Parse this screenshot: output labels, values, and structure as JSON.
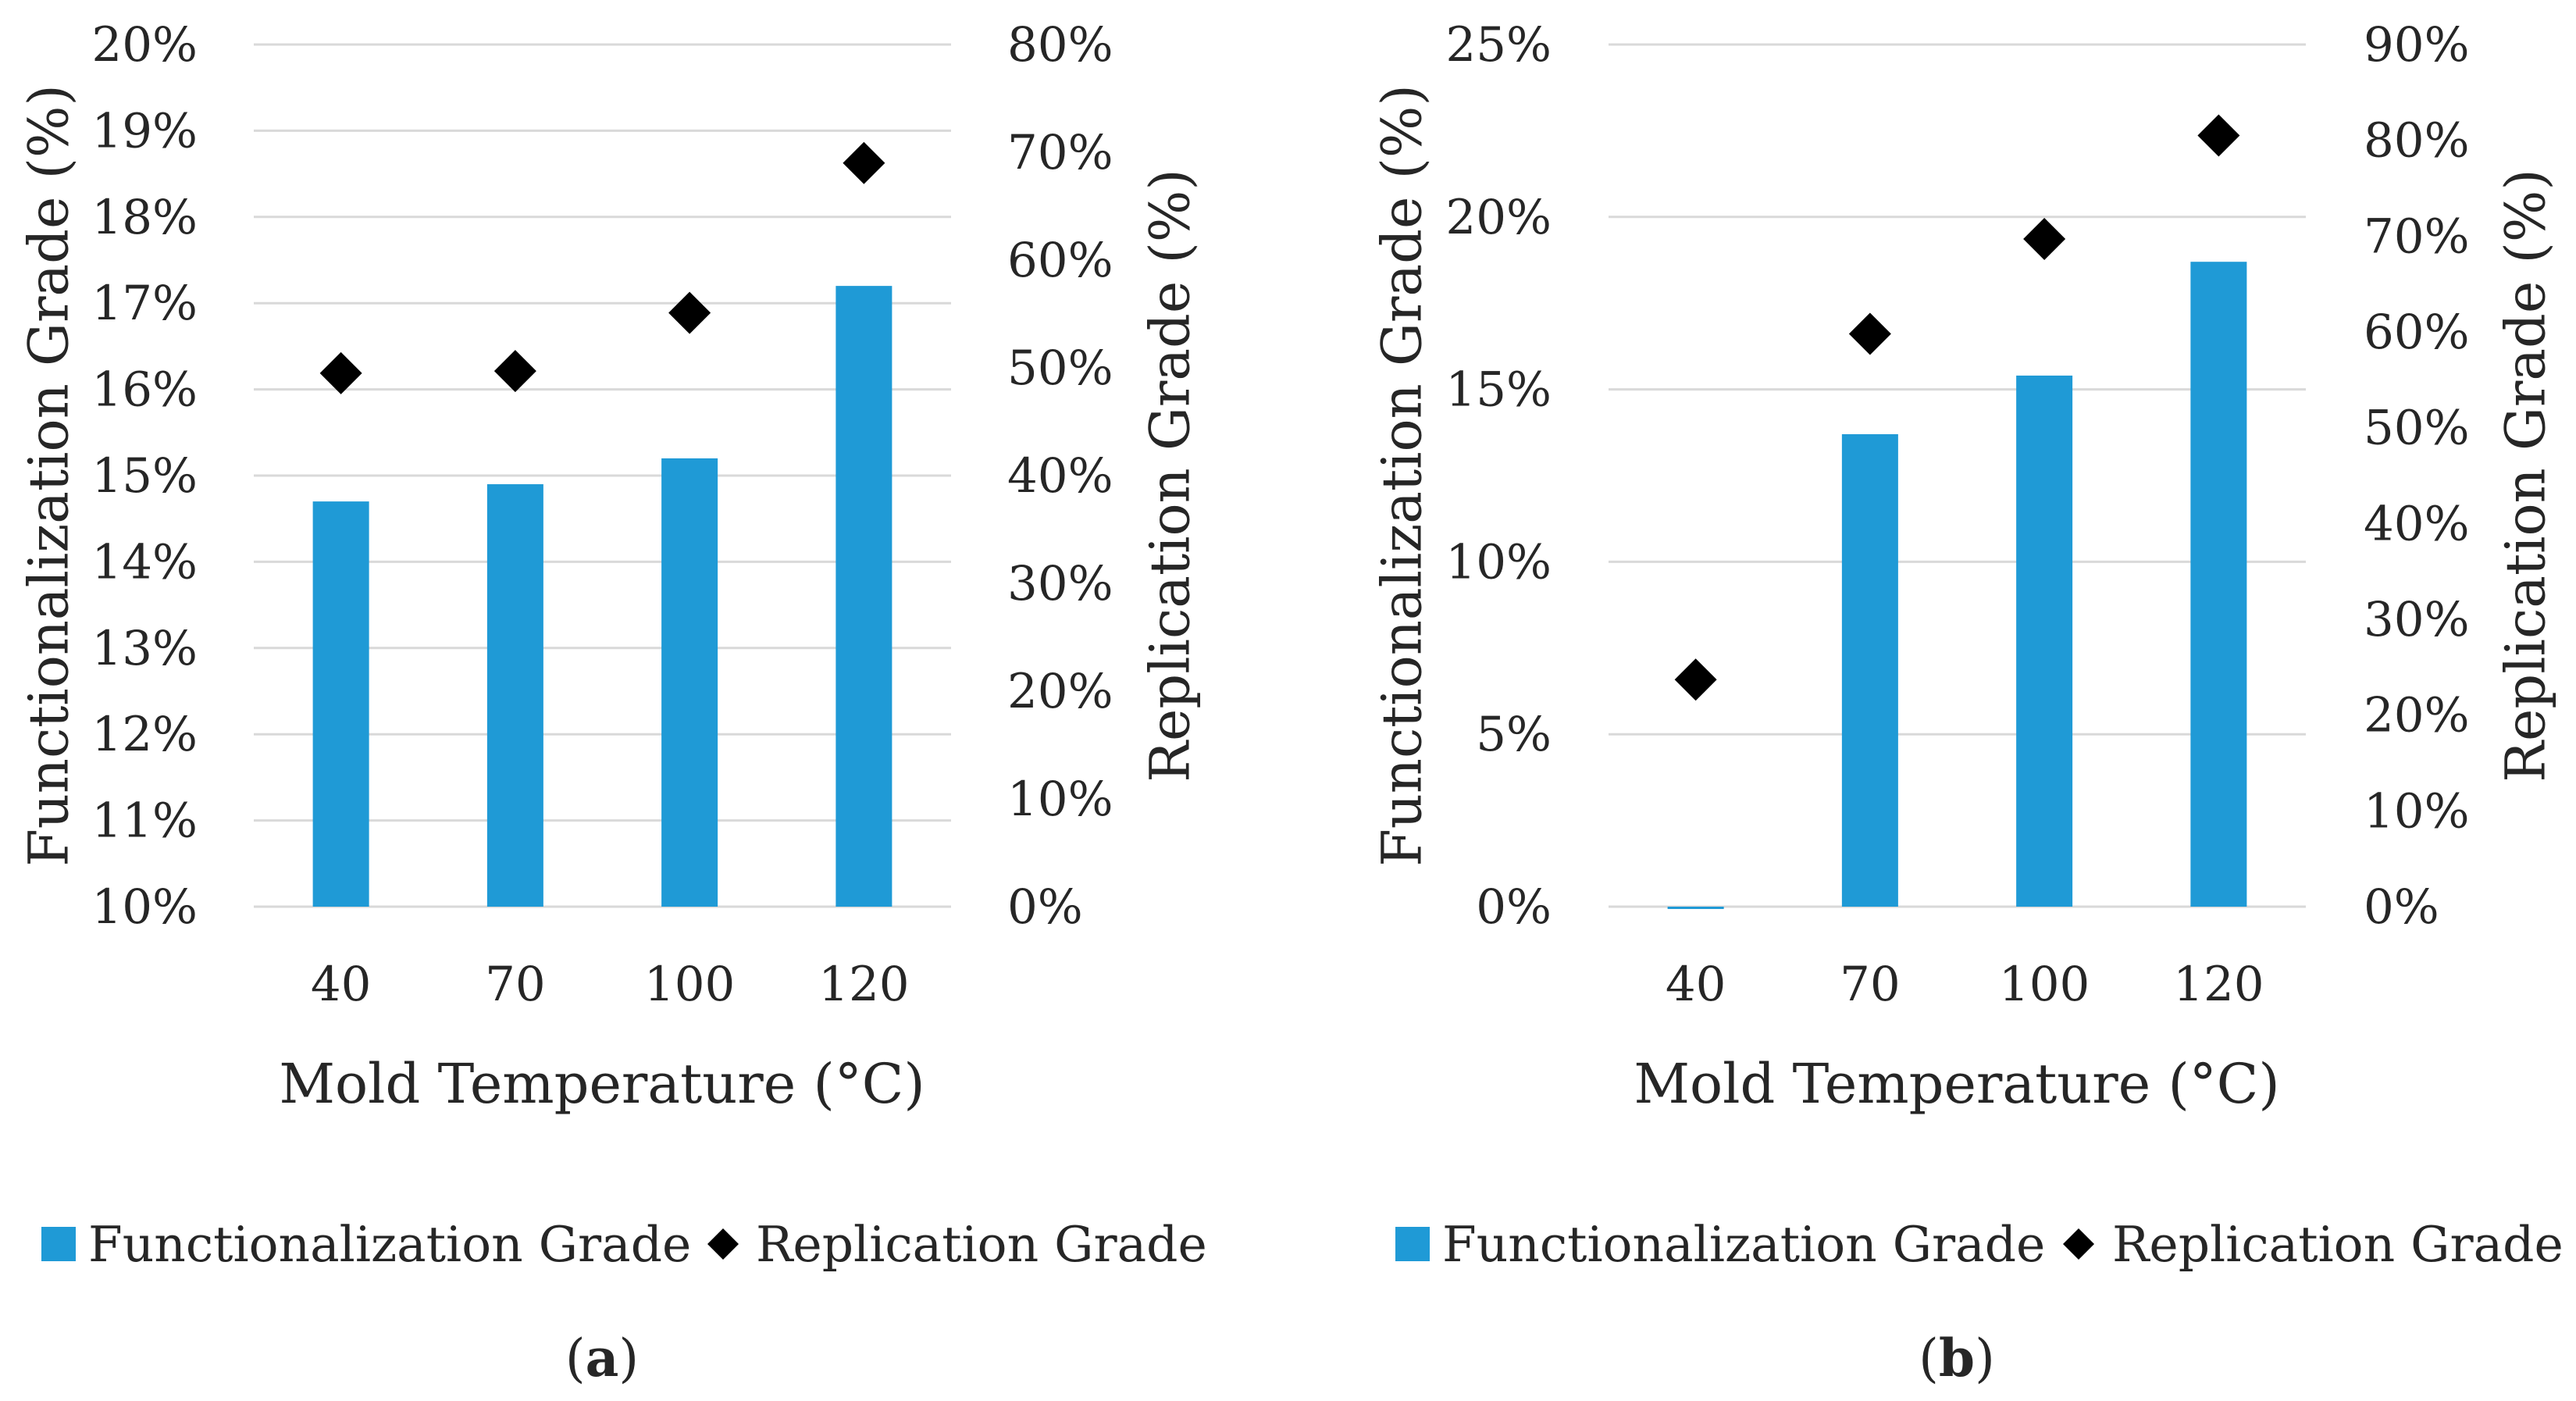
{
  "colors": {
    "bar": "#1f9ad6",
    "marker": "#000000",
    "grid": "#d9d9d9",
    "text": "#262626"
  },
  "chart_data": [
    {
      "type": "bar",
      "panel_label": "a",
      "categories": [
        "40",
        "70",
        "100",
        "120"
      ],
      "xlabel": "Mold Temperature (°C)",
      "ylabel": "Functionalization Grade (%)",
      "y2label": "Replication Grade (%)",
      "ylim": [
        0.1,
        0.2
      ],
      "y2lim": [
        0,
        0.8
      ],
      "yticks": [
        "10%",
        "11%",
        "12%",
        "13%",
        "14%",
        "15%",
        "16%",
        "17%",
        "18%",
        "19%",
        "20%"
      ],
      "y2ticks": [
        "0%",
        "10%",
        "20%",
        "30%",
        "40%",
        "50%",
        "60%",
        "70%",
        "80%"
      ],
      "grid": true,
      "legend_position": "bottom",
      "series": [
        {
          "name": "Functionalization Grade",
          "type": "bar",
          "axis": "left",
          "values": [
            0.147,
            0.149,
            0.152,
            0.172
          ]
        },
        {
          "name": "Replication Grade",
          "type": "scatter",
          "axis": "right",
          "marker": "diamond",
          "values": [
            0.495,
            0.497,
            0.551,
            0.69
          ]
        }
      ]
    },
    {
      "type": "bar",
      "panel_label": "b",
      "categories": [
        "40",
        "70",
        "100",
        "120"
      ],
      "xlabel": "Mold Temperature (°C)",
      "ylabel": "Functionalization Grade (%)",
      "y2label": "Replication Grade (%)",
      "ylim": [
        0,
        0.25
      ],
      "y2lim": [
        0,
        0.9
      ],
      "yticks": [
        "0%",
        "5%",
        "10%",
        "15%",
        "20%",
        "25%"
      ],
      "y2ticks": [
        "0%",
        "10%",
        "20%",
        "30%",
        "40%",
        "50%",
        "60%",
        "70%",
        "80%",
        "90%"
      ],
      "grid": true,
      "legend_position": "bottom",
      "series": [
        {
          "name": "Functionalization Grade",
          "type": "bar",
          "axis": "left",
          "values": [
            -0.001,
            0.137,
            0.154,
            0.187
          ]
        },
        {
          "name": "Replication Grade",
          "type": "scatter",
          "axis": "right",
          "marker": "diamond",
          "values": [
            0.237,
            0.598,
            0.697,
            0.805
          ]
        }
      ]
    }
  ]
}
